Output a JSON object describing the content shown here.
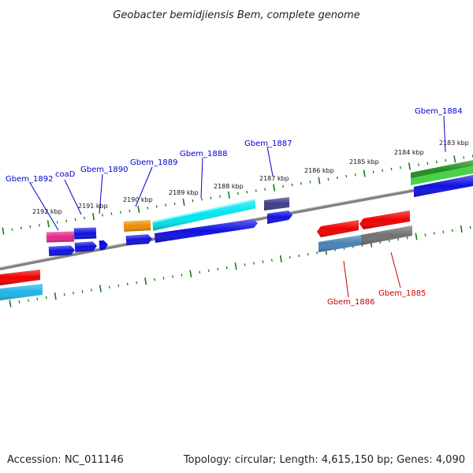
{
  "title": "Geobacter bemidjiensis Bem, complete genome",
  "footer": {
    "accession": "Accession: NC_011146",
    "summary": "Topology: circular; Length: 4,615,150 bp; Genes: 4,090"
  },
  "colors": {
    "forward_label": "#0000cc",
    "reverse_label": "#cc0000",
    "backbone": "#808080",
    "tick": "#1a7a1a"
  },
  "ticks": [
    {
      "label": "2192 kbp"
    },
    {
      "label": "2191 kbp"
    },
    {
      "label": "2190 kbp"
    },
    {
      "label": "2189 kbp"
    },
    {
      "label": "2188 kbp"
    },
    {
      "label": "2187 kbp"
    },
    {
      "label": "2186 kbp"
    },
    {
      "label": "2185 kbp"
    },
    {
      "label": "2184 kbp"
    },
    {
      "label": "2183 kbp"
    }
  ],
  "gene_labels": [
    {
      "text": "Gbem_1892",
      "strand": "forward"
    },
    {
      "text": "coaD",
      "strand": "forward"
    },
    {
      "text": "Gbem_1890",
      "strand": "forward"
    },
    {
      "text": "Gbem_1889",
      "strand": "forward"
    },
    {
      "text": "Gbem_1888",
      "strand": "forward"
    },
    {
      "text": "Gbem_1887",
      "strand": "forward"
    },
    {
      "text": "Gbem_1884",
      "strand": "forward"
    },
    {
      "text": "Gbem_1886",
      "strand": "reverse"
    },
    {
      "text": "Gbem_1885",
      "strand": "reverse"
    }
  ],
  "features": [
    {
      "name": "Gbem_1892",
      "color": "#e8268a"
    },
    {
      "name": "coaD",
      "color": "#1010e0"
    },
    {
      "name": "Gbem_1890",
      "color": "#1010e0"
    },
    {
      "name": "Gbem_1889",
      "color": "#f08c00"
    },
    {
      "name": "Gbem_1888",
      "color": "#00e5ee"
    },
    {
      "name": "Gbem_1887",
      "color": "#3c3c8c"
    },
    {
      "name": "Gbem_1884",
      "color": "#1e8c1e"
    },
    {
      "name": "Gbem_1886",
      "color": "#4682b4"
    },
    {
      "name": "Gbem_1885",
      "color": "#707070"
    },
    {
      "name": "reverse-red",
      "color": "#ee0000"
    },
    {
      "name": "blue-track",
      "color": "#1010e0"
    },
    {
      "name": "green-light",
      "color": "#4cd04c"
    },
    {
      "name": "cyan-left",
      "color": "#20b4e8"
    }
  ]
}
